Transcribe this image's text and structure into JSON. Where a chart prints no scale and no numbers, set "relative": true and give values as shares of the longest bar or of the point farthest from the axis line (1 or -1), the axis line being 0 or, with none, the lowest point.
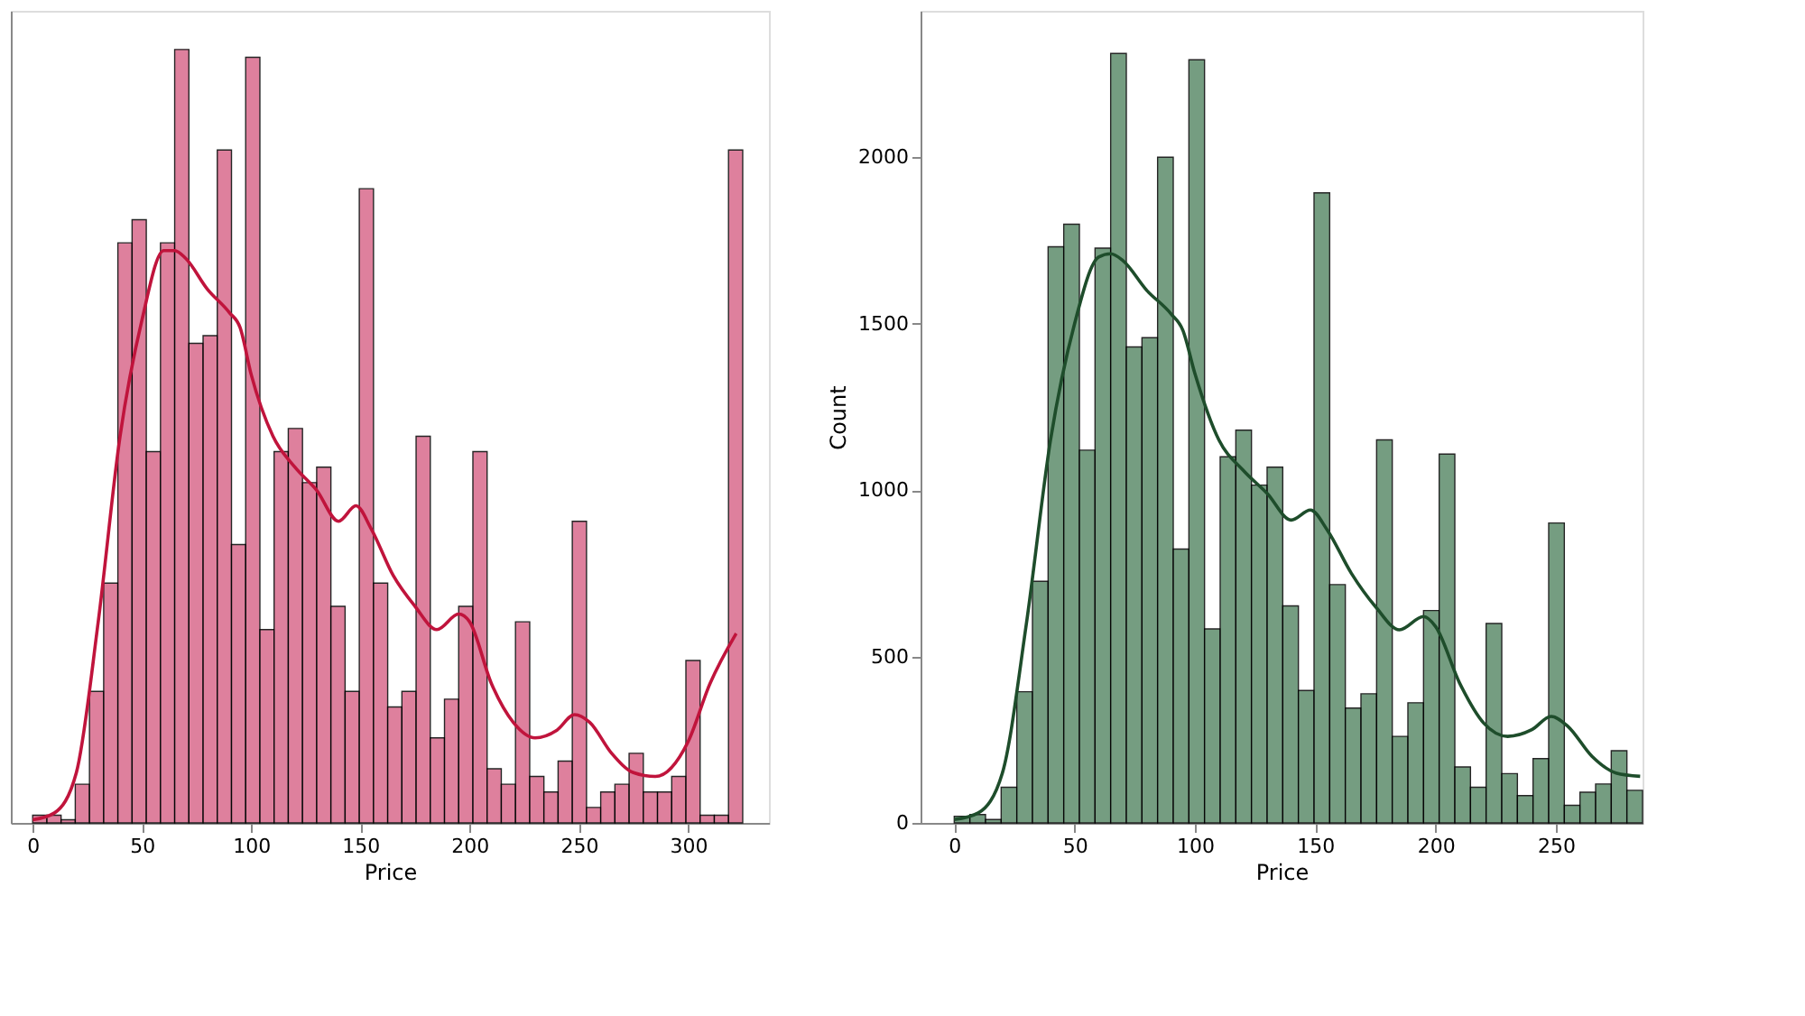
{
  "chart_data": [
    {
      "type": "histogram",
      "relative": true,
      "xlabel": "Price",
      "xlim": [
        -10,
        337
      ],
      "xticks": [
        0,
        50,
        100,
        150,
        200,
        250,
        300
      ],
      "tick_labels": "x",
      "color": "#d96a8c",
      "bins": [
        0,
        6.5,
        13,
        19.5,
        26,
        32.5,
        39,
        45.5,
        52,
        58.5,
        65,
        71.5,
        78,
        84.5,
        91,
        97.5,
        104,
        110.5,
        117,
        123.5,
        130,
        136.5,
        143,
        149.5,
        156,
        162.5,
        169,
        175.5,
        182,
        188.5,
        195,
        201.5,
        208,
        214.5,
        221,
        227.5,
        234,
        240.5,
        247,
        253.5,
        260,
        266.5,
        273,
        279.5,
        286,
        292.5,
        299,
        305.5,
        312,
        318.5,
        325
      ],
      "values": [
        0.01,
        0.01,
        0.004,
        0.05,
        0.17,
        0.31,
        0.75,
        0.78,
        0.48,
        0.75,
        1,
        0.62,
        0.63,
        0.87,
        0.36,
        0.99,
        0.25,
        0.48,
        0.51,
        0.44,
        0.46,
        0.28,
        0.17,
        0.82,
        0.31,
        0.15,
        0.17,
        0.5,
        0.11,
        0.16,
        0.28,
        0.48,
        0.07,
        0.05,
        0.26,
        0.06,
        0.04,
        0.08,
        0.39,
        0.02,
        0.04,
        0.05,
        0.09,
        0.04,
        0.04,
        0.06,
        0.21,
        0.01,
        0.01,
        0.87
      ],
      "series": [
        {
          "type": "line",
          "color": "#c0143c",
          "x": [
            0,
            10,
            20,
            30,
            40,
            50,
            60,
            65,
            70,
            80,
            90,
            95,
            100,
            110,
            120,
            130,
            140,
            148,
            155,
            165,
            175,
            185,
            195,
            200,
            210,
            220,
            230,
            240,
            248,
            255,
            265,
            275,
            285,
            300,
            310,
            322
          ],
          "values": [
            0.004,
            0.013,
            0.065,
            0.26,
            0.5,
            0.65,
            0.74,
            0.74,
            0.73,
            0.69,
            0.66,
            0.64,
            0.58,
            0.5,
            0.46,
            0.43,
            0.39,
            0.41,
            0.38,
            0.32,
            0.28,
            0.25,
            0.27,
            0.26,
            0.18,
            0.13,
            0.11,
            0.12,
            0.14,
            0.13,
            0.09,
            0.065,
            0.06,
            0.105,
            0.18,
            0.245
          ]
        }
      ]
    },
    {
      "type": "histogram",
      "xlabel": "Price",
      "ylabel": "Count",
      "xlim": [
        -14,
        286
      ],
      "xticks": [
        0,
        50,
        100,
        150,
        200,
        250
      ],
      "ylim": [
        0,
        2440
      ],
      "yticks": [
        0,
        500,
        1000,
        1500,
        2000
      ],
      "color": "#5e8c6c",
      "bins": [
        0,
        6.5,
        13,
        19.5,
        26,
        32.5,
        39,
        45.5,
        52,
        58.5,
        65,
        71.5,
        78,
        84.5,
        91,
        97.5,
        104,
        110.5,
        117,
        123.5,
        130,
        136.5,
        143,
        149.5,
        156,
        162.5,
        169,
        175.5,
        182,
        188.5,
        195,
        201.5,
        208,
        214.5,
        221,
        227.5,
        234,
        240.5,
        247,
        253.5,
        260,
        266.5,
        273,
        279.5,
        286
      ],
      "values": [
        20,
        25,
        10,
        107,
        394,
        726,
        1731,
        1799,
        1120,
        1727,
        2312,
        1430,
        1458,
        2000,
        823,
        2293,
        583,
        1100,
        1180,
        1015,
        1069,
        652,
        398,
        1893,
        716,
        345,
        388,
        1151,
        260,
        361,
        638,
        1108,
        168,
        107,
        599,
        148,
        82,
        193,
        901,
        53,
        92,
        117,
        217,
        98
      ],
      "series": [
        {
          "type": "line",
          "color": "#1e4d2b",
          "x": [
            0,
            10,
            20,
            30,
            40,
            50,
            60,
            65,
            70,
            80,
            90,
            95,
            100,
            110,
            120,
            130,
            140,
            148,
            155,
            165,
            175,
            185,
            195,
            200,
            210,
            220,
            230,
            240,
            248,
            255,
            265,
            275,
            285
          ],
          "values": [
            10,
            30,
            150,
            600,
            1150,
            1500,
            1700,
            1710,
            1690,
            1600,
            1530,
            1480,
            1350,
            1150,
            1060,
            990,
            910,
            940,
            880,
            750,
            650,
            580,
            620,
            590,
            420,
            300,
            260,
            280,
            320,
            290,
            200,
            150,
            140
          ]
        }
      ]
    }
  ]
}
